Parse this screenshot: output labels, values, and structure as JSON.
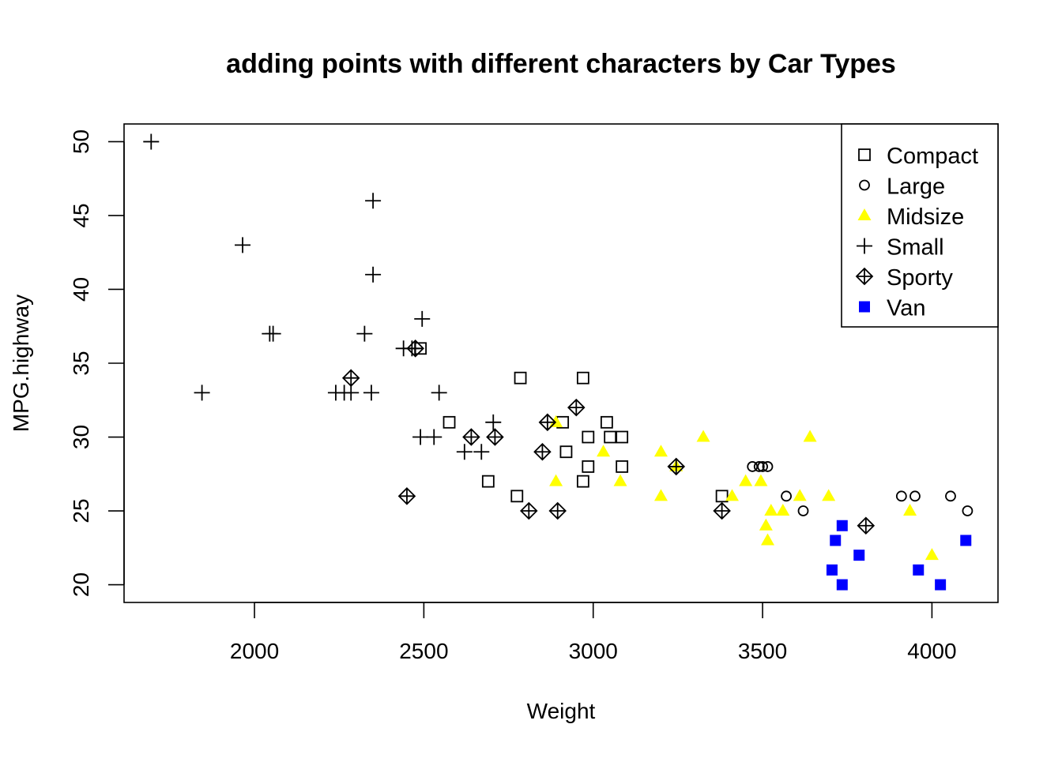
{
  "chart_data": {
    "type": "scatter",
    "title": "adding points with different characters by Car Types",
    "xlabel": "Weight",
    "ylabel": "MPG.highway",
    "xlim": [
      1615,
      4195
    ],
    "ylim": [
      18.8,
      51.2
    ],
    "xticks": [
      2000,
      2500,
      3000,
      3500,
      4000
    ],
    "yticks": [
      20,
      25,
      30,
      35,
      40,
      45,
      50
    ],
    "grid": false,
    "legend_position": "top-right",
    "series": [
      {
        "name": "Compact",
        "marker": "open-square",
        "color": "#000000",
        "points": [
          [
            2490,
            36
          ],
          [
            2575,
            31
          ],
          [
            2690,
            27
          ],
          [
            2775,
            26
          ],
          [
            2785,
            34
          ],
          [
            2910,
            31
          ],
          [
            2920,
            29
          ],
          [
            2970,
            34
          ],
          [
            2970,
            27
          ],
          [
            2985,
            30
          ],
          [
            2985,
            28
          ],
          [
            3040,
            31
          ],
          [
            3050,
            30
          ],
          [
            3085,
            30
          ],
          [
            3085,
            28
          ],
          [
            3380,
            26
          ]
        ]
      },
      {
        "name": "Large",
        "marker": "open-circle",
        "color": "#000000",
        "points": [
          [
            3470,
            28
          ],
          [
            3490,
            28
          ],
          [
            3500,
            28
          ],
          [
            3515,
            28
          ],
          [
            3570,
            26
          ],
          [
            3620,
            25
          ],
          [
            3910,
            26
          ],
          [
            3950,
            26
          ],
          [
            4055,
            26
          ],
          [
            4105,
            25
          ]
        ]
      },
      {
        "name": "Midsize",
        "marker": "filled-triangle",
        "color": "#ffff00",
        "points": [
          [
            2890,
            31
          ],
          [
            2890,
            27
          ],
          [
            3030,
            29
          ],
          [
            3080,
            27
          ],
          [
            3200,
            29
          ],
          [
            3200,
            26
          ],
          [
            3245,
            28
          ],
          [
            3325,
            30
          ],
          [
            3410,
            26
          ],
          [
            3450,
            27
          ],
          [
            3495,
            27
          ],
          [
            3510,
            24
          ],
          [
            3515,
            23
          ],
          [
            3525,
            25
          ],
          [
            3560,
            25
          ],
          [
            3610,
            26
          ],
          [
            3640,
            30
          ],
          [
            3695,
            26
          ],
          [
            3935,
            25
          ],
          [
            4000,
            22
          ]
        ]
      },
      {
        "name": "Small",
        "marker": "plus",
        "color": "#000000",
        "points": [
          [
            1695,
            50
          ],
          [
            1845,
            33
          ],
          [
            1965,
            43
          ],
          [
            2045,
            37
          ],
          [
            2055,
            37
          ],
          [
            2240,
            33
          ],
          [
            2265,
            33
          ],
          [
            2285,
            33
          ],
          [
            2325,
            37
          ],
          [
            2345,
            33
          ],
          [
            2350,
            46
          ],
          [
            2350,
            41
          ],
          [
            2440,
            36
          ],
          [
            2465,
            36
          ],
          [
            2490,
            30
          ],
          [
            2495,
            38
          ],
          [
            2530,
            30
          ],
          [
            2545,
            33
          ],
          [
            2620,
            29
          ],
          [
            2670,
            29
          ],
          [
            2705,
            31
          ]
        ]
      },
      {
        "name": "Sporty",
        "marker": "diamond-plus",
        "color": "#000000",
        "points": [
          [
            2285,
            34
          ],
          [
            2450,
            26
          ],
          [
            2475,
            36
          ],
          [
            2640,
            30
          ],
          [
            2710,
            30
          ],
          [
            2810,
            25
          ],
          [
            2850,
            29
          ],
          [
            2865,
            31
          ],
          [
            2895,
            25
          ],
          [
            2950,
            32
          ],
          [
            3245,
            28
          ],
          [
            3380,
            25
          ],
          [
            3805,
            24
          ]
        ]
      },
      {
        "name": "Van",
        "marker": "filled-square",
        "color": "#0000ff",
        "points": [
          [
            3705,
            21
          ],
          [
            3715,
            23
          ],
          [
            3735,
            24
          ],
          [
            3735,
            20
          ],
          [
            3785,
            22
          ],
          [
            3960,
            21
          ],
          [
            4025,
            20
          ],
          [
            4100,
            23
          ]
        ]
      }
    ]
  }
}
